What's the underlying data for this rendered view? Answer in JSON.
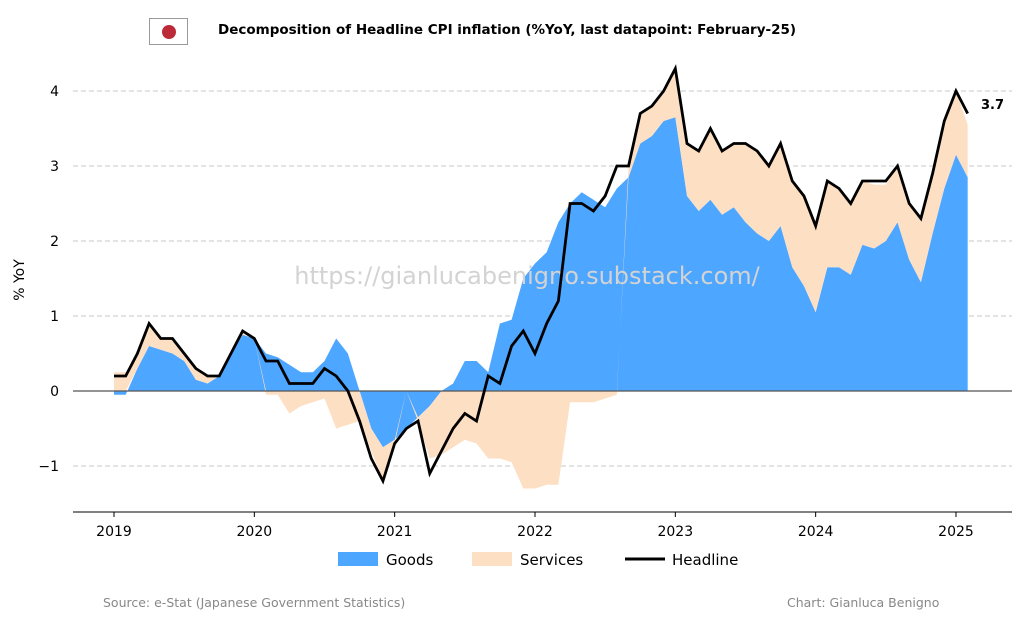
{
  "header": {
    "title": "Decomposition of Headline CPI inflation (%YoY, last datapoint: February-25)",
    "flag_icon": "japan-flag-icon"
  },
  "footer": {
    "source": "Source: e-Stat (Japanese Government Statistics)",
    "credit": "Chart: Gianluca Benigno"
  },
  "watermark": "https://gianlucabenigno.substack.com/",
  "colors": {
    "goods": "#4DA6FF",
    "services": "#FDDFC4",
    "headline": "#000000",
    "flag_red": "#BC2A38"
  },
  "chart_data": {
    "type": "area",
    "title": "Decomposition of Headline CPI inflation (%YoY, last datapoint: February-25)",
    "xlabel": "",
    "ylabel": "% YoY",
    "x_start": "2019-01",
    "x_end": "2025-02",
    "frequency": "monthly",
    "xticks": [
      "2019",
      "2020",
      "2021",
      "2022",
      "2023",
      "2024",
      "2025"
    ],
    "yticks": [
      -1,
      0,
      1,
      2,
      3,
      4
    ],
    "ytick_labels": [
      "−1",
      "0",
      "1",
      "2",
      "3",
      "4"
    ],
    "ylim": [
      -1.6,
      4.5
    ],
    "grid": "horizontal dashed",
    "legend": "bottom-center",
    "last_label": "3.7",
    "series": [
      {
        "name": "Goods",
        "kind": "stacked-area",
        "values": [
          -0.05,
          -0.05,
          0.3,
          0.6,
          0.55,
          0.5,
          0.4,
          0.15,
          0.1,
          0.2,
          0.5,
          0.75,
          0.7,
          0.5,
          0.45,
          0.35,
          0.25,
          0.25,
          0.4,
          0.7,
          0.5,
          0.0,
          -0.5,
          -0.75,
          -0.65,
          -0.5,
          -0.35,
          -0.2,
          0.0,
          0.1,
          0.4,
          0.4,
          0.25,
          0.9,
          0.95,
          1.5,
          1.7,
          1.85,
          2.25,
          2.5,
          2.65,
          2.55,
          2.45,
          2.7,
          2.85,
          3.3,
          3.4,
          3.6,
          3.65,
          2.6,
          2.4,
          2.55,
          2.35,
          2.45,
          2.25,
          2.1,
          2.0,
          2.2,
          1.65,
          1.4,
          1.05,
          1.65,
          1.65,
          1.55,
          1.95,
          1.9,
          2.0,
          2.25,
          1.75,
          1.45,
          2.1,
          2.7,
          3.15,
          2.85
        ]
      },
      {
        "name": "Services",
        "kind": "stacked-area",
        "values": [
          0.25,
          0.25,
          0.2,
          0.3,
          0.15,
          0.2,
          0.1,
          0.15,
          0.1,
          0.0,
          0.0,
          0.05,
          0.0,
          -0.05,
          -0.05,
          -0.3,
          -0.2,
          -0.15,
          -0.1,
          -0.5,
          -0.45,
          -0.4,
          -0.3,
          -0.45,
          -0.05,
          0.0,
          -0.05,
          -0.7,
          -0.85,
          -0.75,
          -0.65,
          -0.7,
          -0.9,
          -0.9,
          -0.95,
          -1.3,
          -1.3,
          -1.25,
          -1.25,
          -0.15,
          -0.15,
          -0.15,
          -0.1,
          -0.05,
          0.15,
          0.4,
          0.4,
          0.4,
          0.65,
          0.7,
          0.8,
          0.95,
          0.85,
          0.85,
          1.05,
          1.1,
          1.0,
          1.1,
          1.15,
          1.2,
          1.15,
          1.15,
          1.05,
          0.95,
          0.85,
          0.85,
          0.75,
          0.75,
          0.75,
          0.85,
          0.8,
          0.9,
          0.85,
          0.7
        ]
      },
      {
        "name": "Headline",
        "kind": "line",
        "values": [
          0.2,
          0.2,
          0.5,
          0.9,
          0.7,
          0.7,
          0.5,
          0.3,
          0.2,
          0.2,
          0.5,
          0.8,
          0.7,
          0.4,
          0.4,
          0.1,
          0.1,
          0.1,
          0.3,
          0.2,
          0.0,
          -0.4,
          -0.9,
          -1.2,
          -0.7,
          -0.5,
          -0.4,
          -1.1,
          -0.8,
          -0.5,
          -0.3,
          -0.4,
          0.2,
          0.1,
          0.6,
          0.8,
          0.5,
          0.9,
          1.2,
          2.5,
          2.5,
          2.4,
          2.6,
          3.0,
          3.0,
          3.7,
          3.8,
          4.0,
          4.3,
          3.3,
          3.2,
          3.5,
          3.2,
          3.3,
          3.3,
          3.2,
          3.0,
          3.3,
          2.8,
          2.6,
          2.2,
          2.8,
          2.7,
          2.5,
          2.8,
          2.8,
          2.8,
          3.0,
          2.5,
          2.3,
          2.9,
          3.6,
          4.0,
          3.7
        ]
      }
    ]
  }
}
